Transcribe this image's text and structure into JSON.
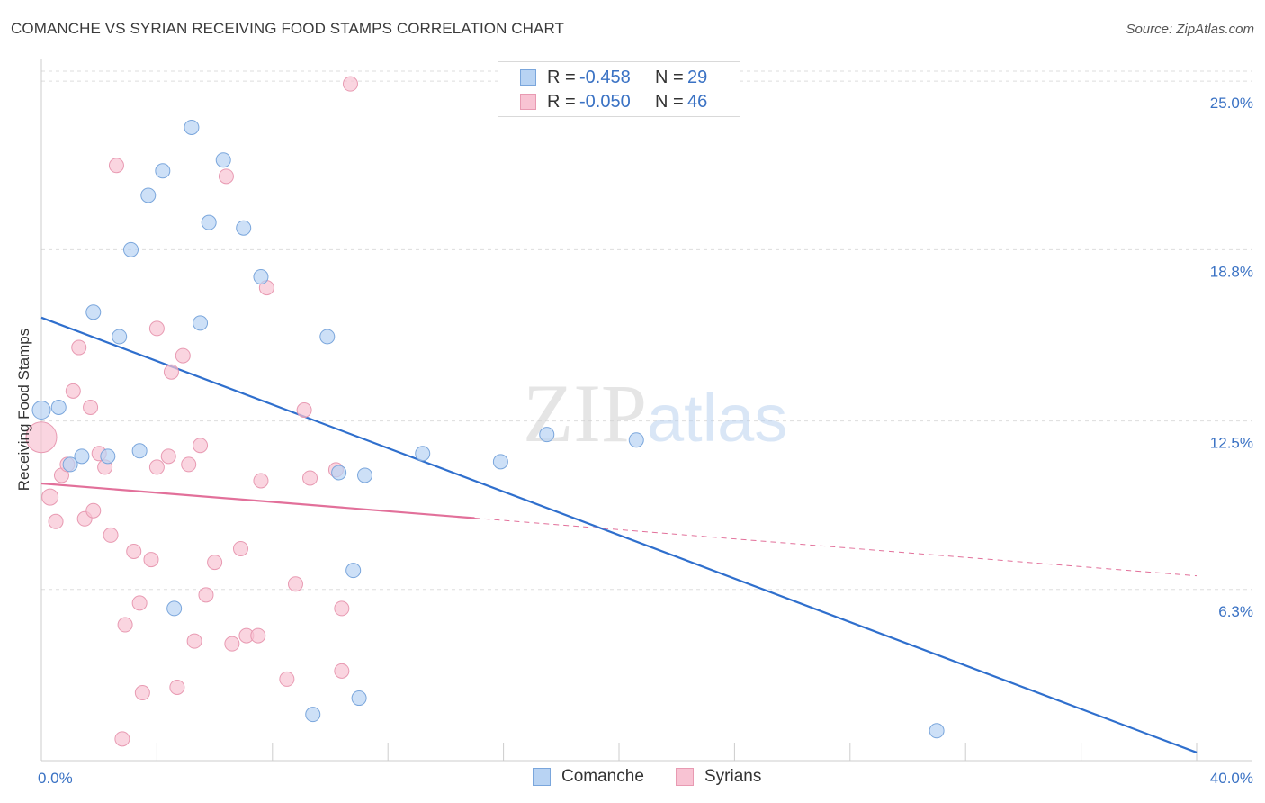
{
  "title": "COMANCHE VS SYRIAN RECEIVING FOOD STAMPS CORRELATION CHART",
  "source": "Source: ZipAtlas.com",
  "watermark": {
    "part1": "ZIP",
    "part2": "atlas"
  },
  "colors": {
    "comanche_fill": "#b8d3f3",
    "comanche_stroke": "#7aa6dc",
    "comanche_line": "#2f6fcd",
    "syrian_fill": "#f8c3d3",
    "syrian_stroke": "#e89ab2",
    "syrian_line": "#e2709a",
    "tick_label": "#3a72c4",
    "grid": "#dddddd"
  },
  "legend_top": {
    "rows": [
      {
        "label": "R =",
        "r": "-0.458",
        "n_label": "N =",
        "n": "29"
      },
      {
        "label": "R =",
        "r": "-0.050",
        "n_label": "N =",
        "n": "46"
      }
    ]
  },
  "legend_bottom": {
    "items": [
      "Comanche",
      "Syrians"
    ]
  },
  "chart_data": {
    "type": "scatter",
    "title": "COMANCHE VS SYRIAN RECEIVING FOOD STAMPS CORRELATION CHART",
    "xlabel": "",
    "ylabel": "Receiving Food Stamps",
    "xlim": [
      0,
      40
    ],
    "ylim": [
      0,
      25.8
    ],
    "x_tick_labels": [
      "0.0%",
      "40.0%"
    ],
    "y_ticks": [
      6.3,
      12.5,
      18.8,
      25.0
    ],
    "y_tick_labels": [
      "6.3%",
      "12.5%",
      "18.8%",
      "25.0%"
    ],
    "grid": true,
    "legend_position": "top-center",
    "series": [
      {
        "name": "Comanche",
        "trend": {
          "x": [
            0,
            40
          ],
          "y": [
            16.3,
            0.3
          ],
          "solid_until": 40
        },
        "points": [
          {
            "x": 0.0,
            "y": 12.9,
            "size": 10
          },
          {
            "x": 0.6,
            "y": 13.0,
            "size": 8
          },
          {
            "x": 1.0,
            "y": 10.9,
            "size": 8
          },
          {
            "x": 1.4,
            "y": 11.2,
            "size": 8
          },
          {
            "x": 1.8,
            "y": 16.5,
            "size": 8
          },
          {
            "x": 2.3,
            "y": 11.2,
            "size": 8
          },
          {
            "x": 2.7,
            "y": 15.6,
            "size": 8
          },
          {
            "x": 3.1,
            "y": 18.8,
            "size": 8
          },
          {
            "x": 3.4,
            "y": 11.4,
            "size": 8
          },
          {
            "x": 3.7,
            "y": 20.8,
            "size": 8
          },
          {
            "x": 4.2,
            "y": 21.7,
            "size": 8
          },
          {
            "x": 4.6,
            "y": 5.6,
            "size": 8
          },
          {
            "x": 5.2,
            "y": 23.3,
            "size": 8
          },
          {
            "x": 5.5,
            "y": 16.1,
            "size": 8
          },
          {
            "x": 5.8,
            "y": 19.8,
            "size": 8
          },
          {
            "x": 6.3,
            "y": 22.1,
            "size": 8
          },
          {
            "x": 7.0,
            "y": 19.6,
            "size": 8
          },
          {
            "x": 7.6,
            "y": 17.8,
            "size": 8
          },
          {
            "x": 9.4,
            "y": 1.7,
            "size": 8
          },
          {
            "x": 9.9,
            "y": 15.6,
            "size": 8
          },
          {
            "x": 10.3,
            "y": 10.6,
            "size": 8
          },
          {
            "x": 10.8,
            "y": 7.0,
            "size": 8
          },
          {
            "x": 11.0,
            "y": 2.3,
            "size": 8
          },
          {
            "x": 11.2,
            "y": 10.5,
            "size": 8
          },
          {
            "x": 13.2,
            "y": 11.3,
            "size": 8
          },
          {
            "x": 15.9,
            "y": 11.0,
            "size": 8
          },
          {
            "x": 17.5,
            "y": 12.0,
            "size": 8
          },
          {
            "x": 20.6,
            "y": 11.8,
            "size": 8
          },
          {
            "x": 31.0,
            "y": 1.1,
            "size": 8
          }
        ]
      },
      {
        "name": "Syrians",
        "trend": {
          "x": [
            0,
            40
          ],
          "y": [
            10.2,
            6.8
          ],
          "solid_until": 15
        },
        "points": [
          {
            "x": 0.0,
            "y": 11.9,
            "size": 17
          },
          {
            "x": 0.3,
            "y": 9.7,
            "size": 9
          },
          {
            "x": 0.5,
            "y": 8.8,
            "size": 8
          },
          {
            "x": 0.7,
            "y": 10.5,
            "size": 8
          },
          {
            "x": 0.9,
            "y": 10.9,
            "size": 8
          },
          {
            "x": 1.1,
            "y": 13.6,
            "size": 8
          },
          {
            "x": 1.3,
            "y": 15.2,
            "size": 8
          },
          {
            "x": 1.5,
            "y": 8.9,
            "size": 8
          },
          {
            "x": 1.7,
            "y": 13.0,
            "size": 8
          },
          {
            "x": 1.8,
            "y": 9.2,
            "size": 8
          },
          {
            "x": 2.0,
            "y": 11.3,
            "size": 8
          },
          {
            "x": 2.2,
            "y": 10.8,
            "size": 8
          },
          {
            "x": 2.4,
            "y": 8.3,
            "size": 8
          },
          {
            "x": 2.6,
            "y": 21.9,
            "size": 8
          },
          {
            "x": 2.8,
            "y": 0.8,
            "size": 8
          },
          {
            "x": 2.9,
            "y": 5.0,
            "size": 8
          },
          {
            "x": 3.2,
            "y": 7.7,
            "size": 8
          },
          {
            "x": 3.4,
            "y": 5.8,
            "size": 8
          },
          {
            "x": 3.5,
            "y": 2.5,
            "size": 8
          },
          {
            "x": 3.8,
            "y": 7.4,
            "size": 8
          },
          {
            "x": 4.0,
            "y": 10.8,
            "size": 8
          },
          {
            "x": 4.0,
            "y": 15.9,
            "size": 8
          },
          {
            "x": 4.4,
            "y": 11.2,
            "size": 8
          },
          {
            "x": 4.5,
            "y": 14.3,
            "size": 8
          },
          {
            "x": 4.7,
            "y": 2.7,
            "size": 8
          },
          {
            "x": 4.9,
            "y": 14.9,
            "size": 8
          },
          {
            "x": 5.1,
            "y": 10.9,
            "size": 8
          },
          {
            "x": 5.3,
            "y": 4.4,
            "size": 8
          },
          {
            "x": 5.5,
            "y": 11.6,
            "size": 8
          },
          {
            "x": 5.7,
            "y": 6.1,
            "size": 8
          },
          {
            "x": 6.0,
            "y": 7.3,
            "size": 8
          },
          {
            "x": 6.4,
            "y": 21.5,
            "size": 8
          },
          {
            "x": 6.6,
            "y": 4.3,
            "size": 8
          },
          {
            "x": 6.9,
            "y": 7.8,
            "size": 8
          },
          {
            "x": 7.1,
            "y": 4.6,
            "size": 8
          },
          {
            "x": 7.5,
            "y": 4.6,
            "size": 8
          },
          {
            "x": 7.6,
            "y": 10.3,
            "size": 8
          },
          {
            "x": 7.8,
            "y": 17.4,
            "size": 8
          },
          {
            "x": 8.5,
            "y": 3.0,
            "size": 8
          },
          {
            "x": 8.8,
            "y": 6.5,
            "size": 8
          },
          {
            "x": 9.1,
            "y": 12.9,
            "size": 8
          },
          {
            "x": 9.3,
            "y": 10.4,
            "size": 8
          },
          {
            "x": 10.2,
            "y": 10.7,
            "size": 8
          },
          {
            "x": 10.4,
            "y": 3.3,
            "size": 8
          },
          {
            "x": 10.4,
            "y": 5.6,
            "size": 8
          },
          {
            "x": 10.7,
            "y": 24.9,
            "size": 8
          }
        ]
      }
    ]
  }
}
